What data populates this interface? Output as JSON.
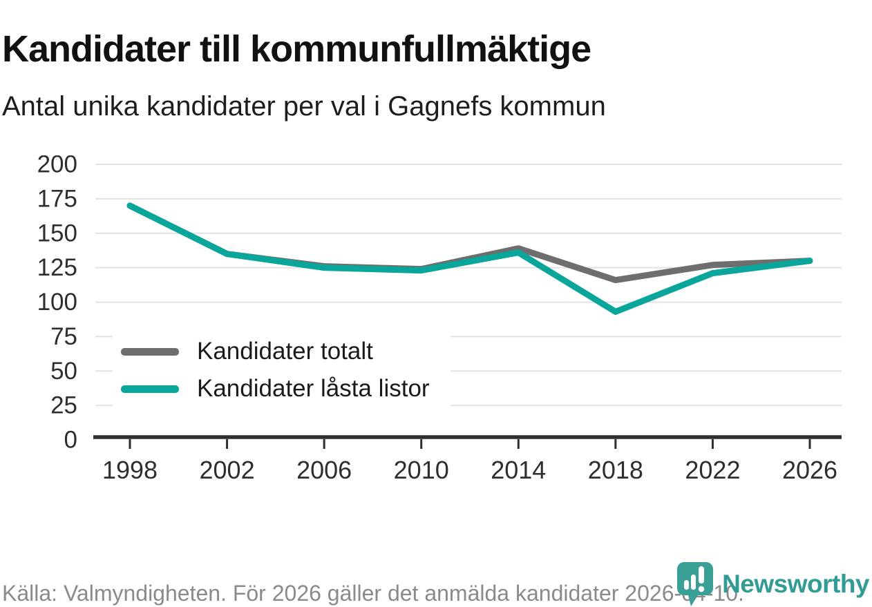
{
  "header": {
    "title": "Kandidater till kommunfullmäktige",
    "subtitle": "Antal unika kandidater per val i Gagnefs kommun"
  },
  "chart_data": {
    "type": "line",
    "title": "Kandidater till kommunfullmäktige",
    "subtitle": "Antal unika kandidater per val i Gagnefs kommun",
    "x": [
      1998,
      2002,
      2006,
      2010,
      2014,
      2018,
      2022,
      2026
    ],
    "series": [
      {
        "name": "Kandidater totalt",
        "color": "#6e6e6e",
        "values": [
          170,
          135,
          126,
          124,
          139,
          116,
          127,
          130
        ]
      },
      {
        "name": "Kandidater låsta listor",
        "color": "#0ba69b",
        "values": [
          170,
          135,
          125,
          123,
          136,
          93,
          121,
          130
        ]
      }
    ],
    "xlabel": "",
    "ylabel": "",
    "ylim": [
      0,
      200
    ],
    "yticks": [
      0,
      25,
      50,
      75,
      100,
      125,
      150,
      175,
      200
    ],
    "grid": "horizontal",
    "legend_position": "inside-bottom-left"
  },
  "footer": {
    "source": "Källa: Valmyndigheten. För 2026 gäller det anmälda kandidater 2026-04-10."
  },
  "logo": {
    "name": "Newsworthy"
  },
  "colors": {
    "accent": "#0ba69b",
    "secondary": "#6e6e6e",
    "brand": "#319c94",
    "grid": "#e2e2e2",
    "axis": "#2e2e2e",
    "text": "#1a1a1a",
    "muted": "#8a8a8a"
  }
}
